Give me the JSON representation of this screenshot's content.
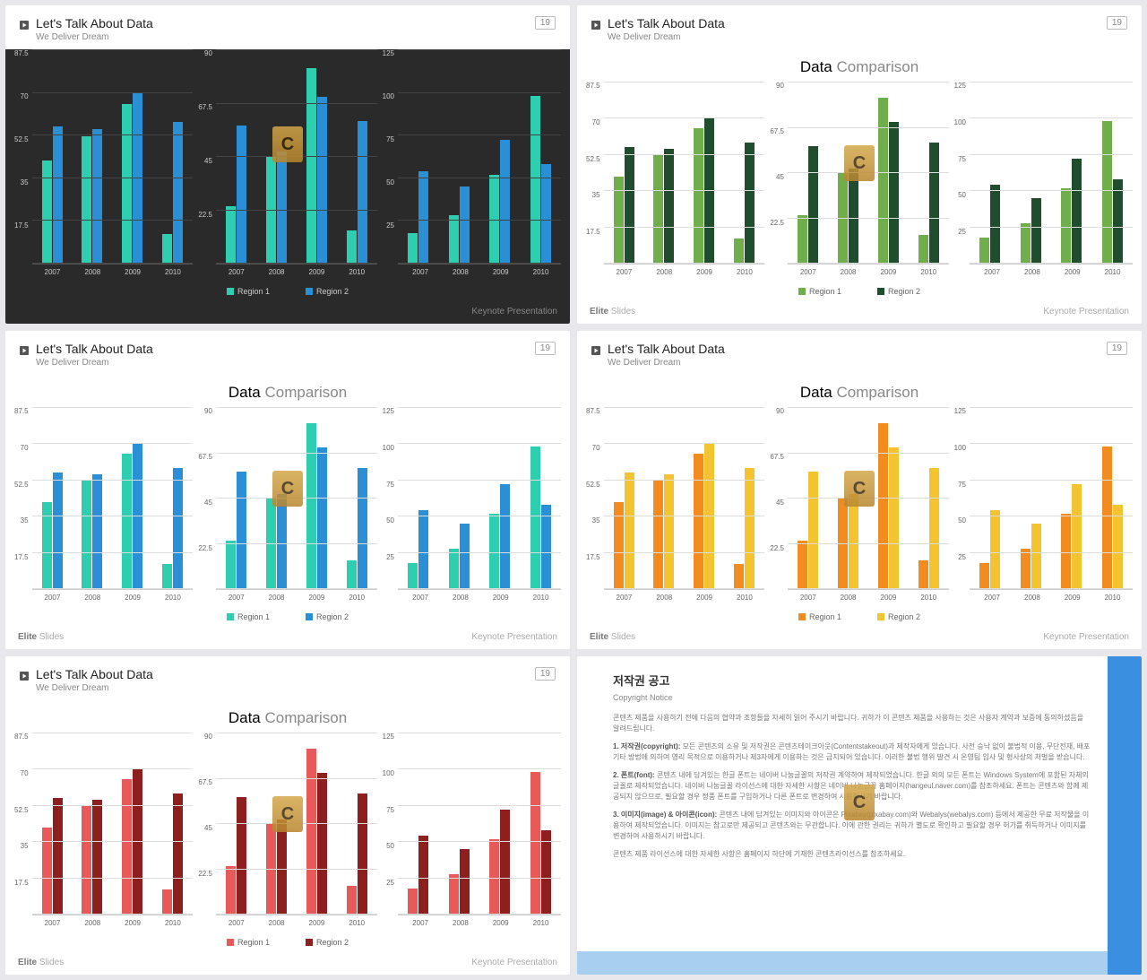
{
  "page_badge": "19",
  "header": {
    "title": "Let's Talk About Data",
    "subtitle": "We Deliver Dream"
  },
  "slide_title": {
    "bold": "Data",
    "light": "Comparison"
  },
  "footer": {
    "left_bold": "Elite",
    "left_light": "Slides",
    "right": "Keynote Presentation"
  },
  "legend": {
    "r1": "Region 1",
    "r2": "Region 2"
  },
  "watermark_letter": "C",
  "categories": [
    "2007",
    "2008",
    "2009",
    "2010"
  ],
  "charts": [
    {
      "ymax": 87.5,
      "ticks": [
        "87.5",
        "70",
        "52.5",
        "35",
        "17.5",
        ""
      ],
      "series": [
        [
          42,
          52,
          65,
          12
        ],
        [
          56,
          55,
          70,
          58
        ]
      ]
    },
    {
      "ymax": 90,
      "ticks": [
        "90",
        "67.5",
        "45",
        "22.5",
        ""
      ],
      "series": [
        [
          24,
          45,
          82,
          14
        ],
        [
          58,
          47,
          70,
          60
        ]
      ]
    },
    {
      "ymax": 125,
      "ticks": [
        "125",
        "100",
        "75",
        "50",
        "25",
        ""
      ],
      "series": [
        [
          18,
          28,
          52,
          98
        ],
        [
          54,
          45,
          72,
          58
        ]
      ]
    }
  ],
  "themes": [
    {
      "dark": true,
      "show_title": false,
      "c1": "#2ecfb0",
      "c2": "#2b8fd6",
      "grid": "#444",
      "text": "#ccc",
      "show_footer_left": false
    },
    {
      "dark": false,
      "show_title": true,
      "c1": "#6fae4a",
      "c2": "#1f4d2e",
      "grid": "#ddd",
      "text": "#666",
      "show_footer_left": true
    },
    {
      "dark": false,
      "show_title": true,
      "c1": "#2ecfb0",
      "c2": "#2b8fd6",
      "grid": "#ddd",
      "text": "#666",
      "show_footer_left": true
    },
    {
      "dark": false,
      "show_title": true,
      "c1": "#f28c1e",
      "c2": "#f4c430",
      "grid": "#ddd",
      "text": "#666",
      "show_footer_left": true
    },
    {
      "dark": false,
      "show_title": true,
      "c1": "#e85a5a",
      "c2": "#8e1f1f",
      "grid": "#ddd",
      "text": "#666",
      "show_footer_left": true
    }
  ],
  "copyright": {
    "title": "저작권 공고",
    "subtitle": "Copyright Notice",
    "border_right_color": "#3b8fe0",
    "border_bottom_color": "#a8cef0",
    "intro": "콘텐츠 제품을 사용하기 전에 다음의 협약과 조항들을 자세히 읽어 주시기 바랍니다. 귀하가 이 콘텐츠 제품을 사용하는 것은 사용자 계약과 보증에 동의하셨음을 알려드립니다.",
    "items": [
      {
        "label": "1. 저작권(copyright):",
        "text": "모든 콘텐츠의 소유 및 저작권은 콘텐츠테이크아웃(Contentstakeout)과 제작자에게 있습니다. 사전 승낙 없이 불법적 이용, 무단전재, 배포 기타 방법에 의하여 영리 목적으로 이용하거나 제3자에게 이용하는 것은 금지되어 있습니다. 이러한 불법 행위 발견 시 온영팀 입사 및 형사상의 처벌을 받습니다."
      },
      {
        "label": "2. 폰트(font):",
        "text": "콘텐츠 내에 담겨있는 한글 폰트는 네이버 나눔글꼴의 저작권 계약하여 제작되었습니다. 한글 외의 모든 폰트는 Windows System에 포함된 자체의 글꼴로 제작되었습니다. 네이버 나눔글꼴 라이선스에 대한 자세한 사항은 네이버 나눔글꼴 홈페이지(hangeul.naver.com)를 참조하세요. 폰트는 콘텐츠와 함께 제공되지 않으므로, 필요할 경우 정품 폰트를 구입하거나 다른 폰트로 변경하여 사용하시기 바랍니다."
      },
      {
        "label": "3. 이미지(image) & 아이콘(icon):",
        "text": "콘텐츠 내에 담겨있는 이미지와 아이콘은 Pixabay(pixabay.com)와 Webalys(webalys.com) 등에서 제공한 무료 저작물을 이용하여 제작되었습니다. 이미지는 참고로만 제공되고 콘텐츠와는 무관합니다. 이에 관한 권리는 귀하가 별도로 확인하고 필요할 경우 허가를 취득하거나 이미지를 변경하여 사용하시기 바랍니다."
      }
    ],
    "outro": "콘텐츠 제품 라이선스에 대한 자세한 사항은 홈페이지 하단에 기재한 콘텐츠라이선스를 참조하세요."
  }
}
